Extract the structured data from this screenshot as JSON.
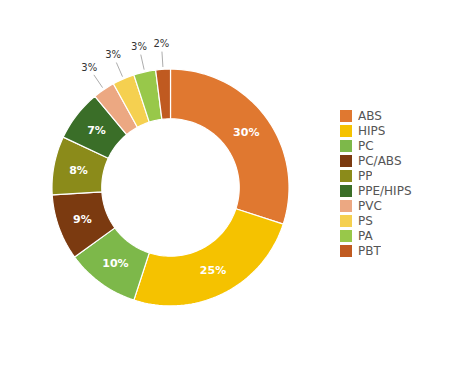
{
  "chart_data": {
    "type": "donut",
    "labels": [
      "ABS",
      "HIPS",
      "PC",
      "PC/ABS",
      "PP",
      "PPE/HIPS",
      "PVC",
      "PS",
      "PA",
      "PBT"
    ],
    "values": [
      30,
      25,
      10,
      9,
      8,
      7,
      3,
      3,
      3,
      2
    ],
    "value_labels": [
      "30%",
      "25%",
      "10%",
      "9%",
      "8%",
      "7%",
      "3%",
      "3%",
      "3%",
      "2%"
    ],
    "colors": [
      "#E07830",
      "#F5C200",
      "#7DB84A",
      "#7B3A10",
      "#8B8B1A",
      "#3A6E28",
      "#ECA882",
      "#F5D050",
      "#98C84A",
      "#C05A20"
    ],
    "data_labels": true,
    "legend": "right"
  }
}
